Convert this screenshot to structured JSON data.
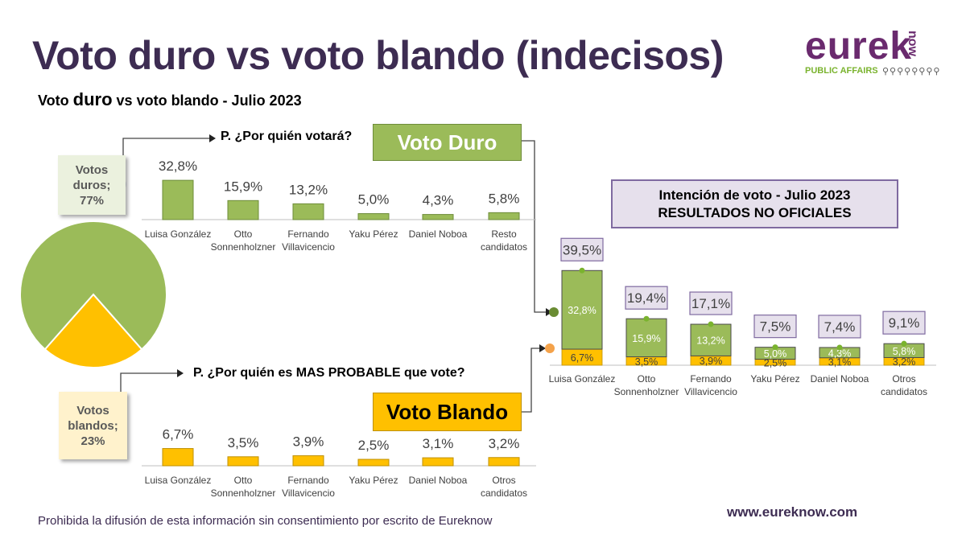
{
  "header": {
    "title": "Voto duro vs voto blando (indecisos)",
    "subtitle_pre": "Voto ",
    "subtitle_emph": "duro",
    "subtitle_post": " vs voto blando - Julio 2023"
  },
  "logo": {
    "word": "eurek",
    "now": "now",
    "tagline": "PUBLIC AFFAIRS",
    "people": "⚲⚲⚲⚲⚲⚲⚲⚲"
  },
  "labels": {
    "q_duro": "P. ¿Por quién votará?",
    "q_blando": "P. ¿Por quién es MAS PROBABLE que vote?",
    "voto_duro": "Voto Duro",
    "voto_blando": "Voto Blando",
    "intencion_line1": "Intención de voto - Julio 2023",
    "intencion_line2": "RESULTADOS NO OFICIALES",
    "callout_duros": [
      "Votos",
      "duros;",
      "77%"
    ],
    "callout_blandos": [
      "Votos",
      "blandos;",
      "23%"
    ]
  },
  "footer": {
    "note": "Prohibida la difusión de esta información sin consentimiento por escrito de Eureknow",
    "url": "www.eureknow.com"
  },
  "colors": {
    "green": "#9bbb59",
    "green_border": "#6e8c3a",
    "yellow": "#ffc000",
    "yellow_border": "#bf9000",
    "purple": "#3d2c52",
    "label_border": "#7f6aa0",
    "label_bg": "#e6e0ec"
  },
  "chart_data": [
    {
      "type": "pie",
      "slices": [
        {
          "name": "Votos duros",
          "value": 77,
          "color": "#9bbb59"
        },
        {
          "name": "Votos blandos",
          "value": 23,
          "color": "#ffc000"
        }
      ]
    },
    {
      "type": "bar",
      "title": "P. ¿Por quién votará?",
      "categories": [
        [
          "Luisa González"
        ],
        [
          "Otto",
          "Sonnenholzner"
        ],
        [
          "Fernando",
          "Villavicencio"
        ],
        [
          "Yaku Pérez"
        ],
        [
          "Daniel Noboa"
        ],
        [
          "Resto",
          "candidatos"
        ]
      ],
      "values": [
        32.8,
        15.9,
        13.2,
        5.0,
        4.3,
        5.8
      ],
      "value_labels": [
        "32,8%",
        "15,9%",
        "13,2%",
        "5,0%",
        "4,3%",
        "5,8%"
      ],
      "color": "#9bbb59"
    },
    {
      "type": "bar",
      "title": "P. ¿Por quién es MAS PROBABLE que vote?",
      "categories": [
        [
          "Luisa González"
        ],
        [
          "Otto",
          "Sonnenholzner"
        ],
        [
          "Fernando",
          "Villavicencio"
        ],
        [
          "Yaku Pérez"
        ],
        [
          "Daniel Noboa"
        ],
        [
          "Otros",
          "candidatos"
        ]
      ],
      "values": [
        6.7,
        3.5,
        3.9,
        2.5,
        3.1,
        3.2
      ],
      "value_labels": [
        "6,7%",
        "3,5%",
        "3,9%",
        "2,5%",
        "3,1%",
        "3,2%"
      ],
      "color": "#ffc000"
    },
    {
      "type": "bar",
      "stacked": true,
      "title": "Intención de voto - Julio 2023",
      "categories": [
        [
          "Luisa González"
        ],
        [
          "Otto",
          "Sonnenholzner"
        ],
        [
          "Fernando",
          "Villavicencio"
        ],
        [
          "Yaku Pérez"
        ],
        [
          "Daniel Noboa"
        ],
        [
          "Otros",
          "candidatos"
        ]
      ],
      "series": [
        {
          "name": "Voto Blando",
          "values": [
            6.7,
            3.5,
            3.9,
            2.5,
            3.1,
            3.2
          ],
          "labels": [
            "6,7%",
            "3,5%",
            "3,9%",
            "2,5%",
            "3,1%",
            "3,2%"
          ],
          "color": "#ffc000"
        },
        {
          "name": "Voto Duro",
          "values": [
            32.8,
            15.9,
            13.2,
            5.0,
            4.3,
            5.8
          ],
          "labels": [
            "32,8%",
            "15,9%",
            "13,2%",
            "5,0%",
            "4,3%",
            "5,8%"
          ],
          "color": "#9bbb59"
        }
      ],
      "totals": [
        39.5,
        19.4,
        17.1,
        7.5,
        7.4,
        9.1
      ],
      "total_labels": [
        "39,5%",
        "19,4%",
        "17,1%",
        "7,5%",
        "7,4%",
        "9,1%"
      ]
    }
  ]
}
